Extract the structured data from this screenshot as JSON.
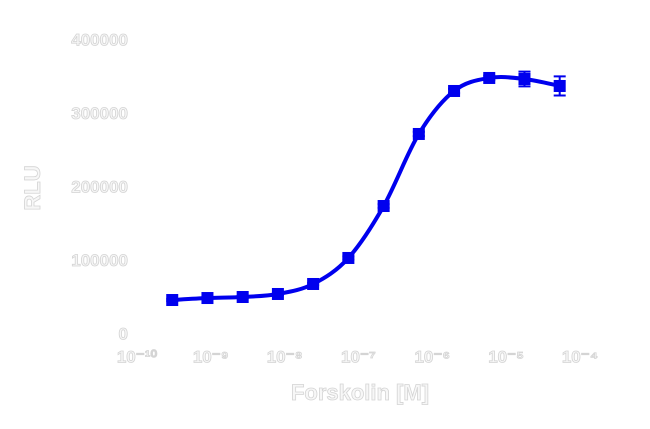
{
  "chart_data": {
    "type": "dose-response",
    "x_label": "Forskolin [M]",
    "y_label": "RLU",
    "log_x": true,
    "xlim": [
      1e-10,
      0.0001
    ],
    "xticks": [
      {
        "value": 1e-10,
        "label": "10⁻¹⁰"
      },
      {
        "value": 1e-09,
        "label": "10⁻⁹"
      },
      {
        "value": 1e-08,
        "label": "10⁻⁸"
      },
      {
        "value": 1e-07,
        "label": "10⁻⁷"
      },
      {
        "value": 1e-06,
        "label": "10⁻⁶"
      },
      {
        "value": 1e-05,
        "label": "10⁻⁵"
      },
      {
        "value": 0.0001,
        "label": "10⁻⁴"
      }
    ],
    "ylim": [
      0,
      400000
    ],
    "yticks": [
      0,
      100000,
      200000,
      300000,
      400000
    ],
    "color": "#0000ee",
    "x": [
      3e-10,
      9e-10,
      2.7e-09,
      8.1e-09,
      2.43e-08,
      7.29e-08,
      2.19e-07,
      6.56e-07,
      1.97e-06,
      5.9e-06,
      1.77e-05,
      5.31e-05
    ],
    "values": [
      47600,
      50300,
      51700,
      55800,
      69400,
      104800,
      175500,
      273500,
      332000,
      349700,
      348300,
      338800
    ],
    "errors": [
      1500,
      1500,
      1500,
      1500,
      1500,
      2000,
      2500,
      3000,
      3000,
      3000,
      10000,
      13000
    ]
  }
}
